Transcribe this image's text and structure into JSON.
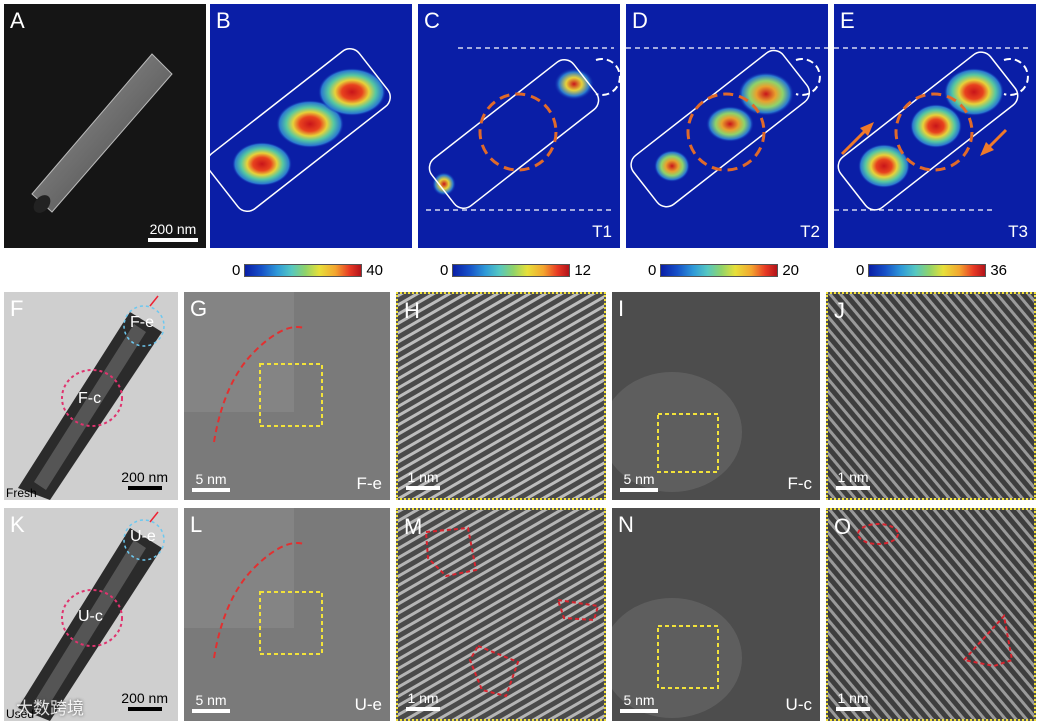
{
  "panels": {
    "A": {
      "label": "A",
      "scale": "200 nm"
    },
    "B": {
      "label": "B"
    },
    "C": {
      "label": "C",
      "tag": "T1"
    },
    "D": {
      "label": "D",
      "tag": "T2"
    },
    "E": {
      "label": "E",
      "tag": "T3"
    },
    "F": {
      "label": "F",
      "scale": "200 nm",
      "note": "Fresh",
      "region_e": "F-e",
      "region_c": "F-c"
    },
    "G": {
      "label": "G",
      "scale": "5 nm",
      "tag": "F-e"
    },
    "H": {
      "label": "H",
      "scale": "1 nm"
    },
    "I": {
      "label": "I",
      "scale": "5 nm",
      "tag": "F-c"
    },
    "J": {
      "label": "J",
      "scale": "1 nm"
    },
    "K": {
      "label": "K",
      "scale": "200 nm",
      "note": "Used",
      "region_e": "U-e",
      "region_c": "U-c"
    },
    "L": {
      "label": "L",
      "scale": "5 nm",
      "tag": "U-e"
    },
    "M": {
      "label": "M",
      "scale": "1 nm"
    },
    "N": {
      "label": "N",
      "scale": "5 nm",
      "tag": "U-c"
    },
    "O": {
      "label": "O",
      "scale": "1 nm"
    }
  },
  "colorbars": [
    {
      "min": "0",
      "max": "40"
    },
    {
      "min": "0",
      "max": "12"
    },
    {
      "min": "0",
      "max": "20"
    },
    {
      "min": "0",
      "max": "36"
    }
  ],
  "watermark": "大数跨境",
  "colors": {
    "map_bg": "#0a1ea6",
    "dashed_orange": "#e06a2a",
    "dashed_red": "#d9232e",
    "yellow_box": "#f2e23a",
    "arrow_orange": "#f07a2a"
  }
}
